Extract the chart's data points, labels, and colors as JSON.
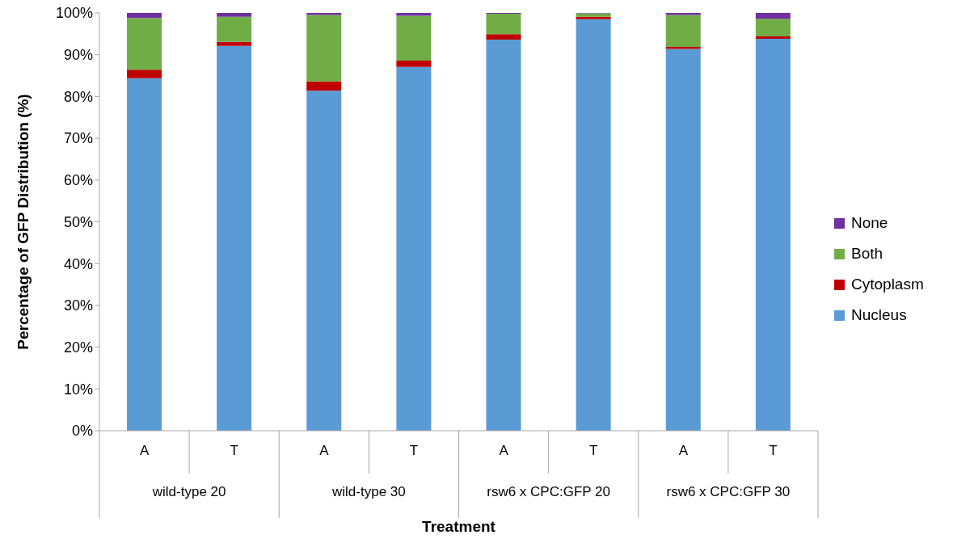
{
  "chart_data": {
    "type": "bar",
    "stacked": true,
    "xlabel": "Treatment",
    "ylabel": "Percentage of GFP Distribution (%)",
    "categories": [
      "A",
      "T",
      "A",
      "T",
      "A",
      "T",
      "A",
      "T"
    ],
    "annotations": [
      "wild-type 20",
      "wild-type 30",
      "rsw6 x CPC:GFP 20",
      "rsw6 x CPC:GFP 30"
    ],
    "series": [
      {
        "name": "Nucleus",
        "color": "#5b9bd5",
        "values": [
          84.4,
          92.1,
          81.4,
          87.1,
          93.6,
          98.5,
          91.4,
          93.8
        ]
      },
      {
        "name": "Cytoplasm",
        "color": "#c00000",
        "values": [
          2.0,
          1.0,
          2.2,
          1.5,
          1.3,
          0.6,
          0.5,
          0.6
        ]
      },
      {
        "name": "Both",
        "color": "#70ad47",
        "values": [
          12.4,
          6.0,
          15.9,
          10.7,
          4.9,
          0.8,
          7.6,
          4.2
        ]
      },
      {
        "name": "None",
        "color": "#7030a0",
        "values": [
          1.2,
          0.9,
          0.5,
          0.7,
          0.2,
          0.1,
          0.5,
          1.4
        ]
      }
    ],
    "ylim": [
      0,
      100
    ],
    "yticks": [
      {
        "value": 0,
        "label": "0%"
      },
      {
        "value": 10,
        "label": "10%"
      },
      {
        "value": 20,
        "label": "20%"
      },
      {
        "value": 30,
        "label": "30%"
      },
      {
        "value": 40,
        "label": "40%"
      },
      {
        "value": 50,
        "label": "50%"
      },
      {
        "value": 60,
        "label": "60%"
      },
      {
        "value": 70,
        "label": "70%"
      },
      {
        "value": 80,
        "label": "80%"
      },
      {
        "value": 90,
        "label": "90%"
      },
      {
        "value": 100,
        "label": "100%"
      }
    ],
    "grid": false,
    "legend": "right"
  }
}
